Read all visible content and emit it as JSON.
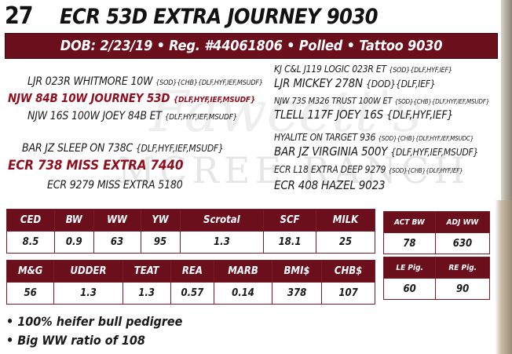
{
  "lot_number": "27",
  "bull_name": "ECR 53D EXTRA JOURNEY 9030",
  "banner": "DOB: 2/23/19 • Reg. #44061806 • Polled • Tattoo 9030",
  "watermark": {
    "script": "Fawcett's",
    "text": "MCREE RANCH"
  },
  "pedigree": {
    "sire_sire_sire": {
      "name": "LJR 023R WHITMORE 10W",
      "tags": "{SOD}{CHB}{DLF,HYF,IEF,MSUDF}"
    },
    "sire_sire": {
      "name": "NJW 84B 10W JOURNEY 53D",
      "tags": "{DLF,HYF,IEF,MSUDF}"
    },
    "sire_sire_dam": {
      "name": "NJW 16S 100W JOEY 84B ET",
      "tags": "{DLF,HYF,IEF,MSUDF}"
    },
    "sire_dam_sire": {
      "name": "BAR JZ SLEEP ON 738C",
      "tags": "{DLF,HYF,IEF,MSUDF}"
    },
    "sire_dam": {
      "name": "ECR 738 MISS EXTRA 7440",
      "tags": ""
    },
    "sire_dam_dam": {
      "name": "ECR 9279 MISS EXTRA 5180",
      "tags": ""
    },
    "right": [
      {
        "name": "KJ C&L J119 LOGIC 023R ET",
        "tags": "{SOD}{DLF,HYF,IEF}"
      },
      {
        "name": "LJR MICKEY 278N",
        "tags": "{DOD}{DLF,IEF}"
      },
      {
        "name": "NJW 73S M326 TRUST 100W ET",
        "tags": "{SOD}{CHB}{DLF,HYF,IEF,MSUDF}"
      },
      {
        "name": "TLELL 117F JOEY 16S",
        "tags": "{DLF,HYF,IEF}"
      },
      {
        "name": "HYALITE ON TARGET 936",
        "tags": "{SOD}{CHB}{DLF,HYF,IEF,MSUDC}"
      },
      {
        "name": "BAR JZ VIRGINIA 500Y",
        "tags": "{DLF,HYF,IEF,MSUDF}"
      },
      {
        "name": "ECR L18 EXTRA DEEP 9279",
        "tags": "{SOD}{CHB}{DLF,HYF,IEF}"
      },
      {
        "name": "ECR 408 HAZEL 9023",
        "tags": ""
      }
    ]
  },
  "epd_table_1": {
    "headers": [
      "CED",
      "BW",
      "WW",
      "YW",
      "Scrotal",
      "SCF",
      "MILK"
    ],
    "values": [
      "8.5",
      "0.9",
      "63",
      "95",
      "1.3",
      "18.1",
      "25"
    ]
  },
  "epd_table_2": {
    "headers": [
      "M&G",
      "UDDER",
      "TEAT",
      "REA",
      "MARB",
      "BMI$",
      "CHB$"
    ],
    "values": [
      "56",
      "1.3",
      "1.3",
      "0.57",
      "0.14",
      "378",
      "107"
    ]
  },
  "actual_table_1": {
    "headers": [
      "ACT BW",
      "ADJ WW"
    ],
    "values": [
      "78",
      "630"
    ]
  },
  "actual_table_2": {
    "headers": [
      "LE Pig.",
      "RE Pig."
    ],
    "values": [
      "60",
      "90"
    ]
  },
  "bullets": [
    "• 100% heifer bull pedigree",
    "• Big WW ratio of 108"
  ],
  "colors": {
    "maroon": "#6b0f1d",
    "red_text": "#8f0f1f"
  }
}
